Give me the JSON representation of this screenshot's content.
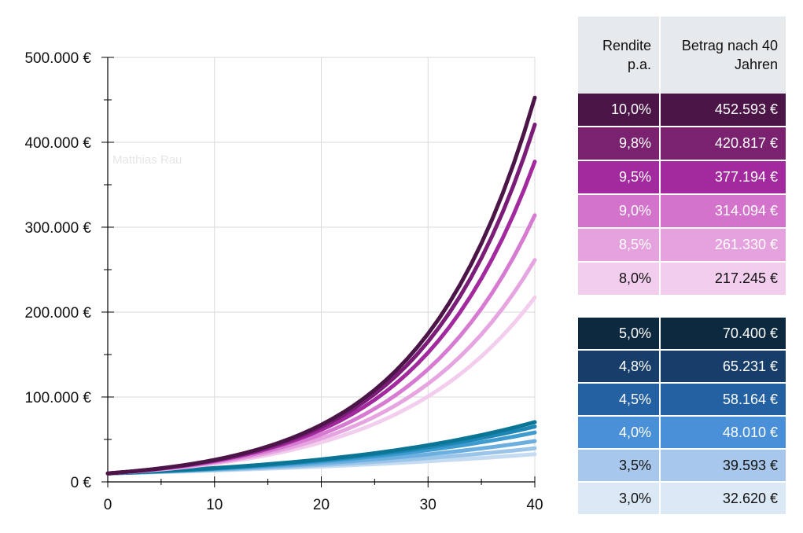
{
  "chart_data": {
    "type": "line",
    "x_range": [
      0,
      40
    ],
    "y_range": [
      0,
      500000
    ],
    "x_ticks": [
      "0",
      "10",
      "20",
      "30",
      "40"
    ],
    "y_ticks": [
      "0 €",
      "100.000 €",
      "200.000 €",
      "300.000 €",
      "400.000 €",
      "500.000 €"
    ],
    "start_value": 10000,
    "watermark": "Matthias Rau",
    "series": [
      {
        "name": "10,0%",
        "rate": 0.1,
        "color": "#4c1548"
      },
      {
        "name": "9,8%",
        "rate": 0.098,
        "color": "#7a1c78"
      },
      {
        "name": "9,5%",
        "rate": 0.095,
        "color": "#a2299e"
      },
      {
        "name": "9,0%",
        "rate": 0.09,
        "color": "#d77ad2"
      },
      {
        "name": "8,5%",
        "rate": 0.085,
        "color": "#e6a4e0"
      },
      {
        "name": "8,0%",
        "rate": 0.08,
        "color": "#f2cdee"
      },
      {
        "name": "5,0%",
        "rate": 0.05,
        "color": "#0a7595"
      },
      {
        "name": "4,8%",
        "rate": 0.048,
        "color": "#1d86b4"
      },
      {
        "name": "4,5%",
        "rate": 0.045,
        "color": "#3e9bd0"
      },
      {
        "name": "4,0%",
        "rate": 0.04,
        "color": "#6aafdf"
      },
      {
        "name": "3,5%",
        "rate": 0.035,
        "color": "#9ac5e9"
      },
      {
        "name": "3,0%",
        "rate": 0.03,
        "color": "#c5dbf1"
      }
    ]
  },
  "table_header": {
    "rate": "Rendite p.a.",
    "amount": "Betrag nach 40 Jahren"
  },
  "table_high": [
    {
      "rate": "10,0%",
      "amount": "452.593 €",
      "color": "#4c1548"
    },
    {
      "rate": "9,8%",
      "amount": "420.817 €",
      "color": "#7a2270"
    },
    {
      "rate": "9,5%",
      "amount": "377.194 €",
      "color": "#a2299e"
    },
    {
      "rate": "9,0%",
      "amount": "314.094 €",
      "color": "#d473cc"
    },
    {
      "rate": "8,5%",
      "amount": "261.330 €",
      "color": "#e6a2de"
    },
    {
      "rate": "8,0%",
      "amount": "217.245 €",
      "color": "#f2cdee"
    }
  ],
  "table_low": [
    {
      "rate": "5,0%",
      "amount": "70.400 €",
      "color": "#0d2940"
    },
    {
      "rate": "4,8%",
      "amount": "65.231 €",
      "color": "#173e6a"
    },
    {
      "rate": "4,5%",
      "amount": "58.164 €",
      "color": "#2461a2"
    },
    {
      "rate": "4,0%",
      "amount": "48.010 €",
      "color": "#4a90d9"
    },
    {
      "rate": "3,5%",
      "amount": "39.593 €",
      "color": "#a7c8ec"
    },
    {
      "rate": "3,0%",
      "amount": "32.620 €",
      "color": "#dbe8f6"
    }
  ]
}
